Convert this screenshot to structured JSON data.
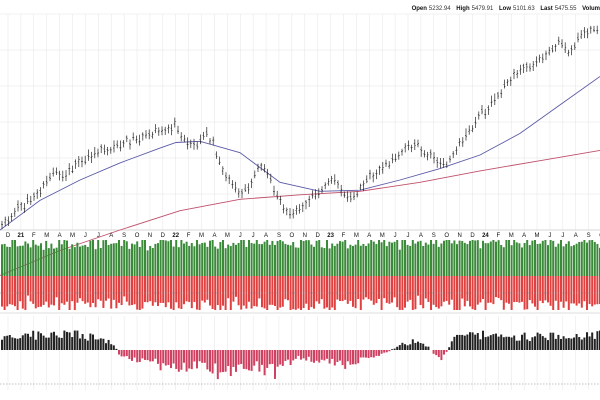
{
  "header": {
    "open_label": "Open",
    "open_value": "5232.94",
    "high_label": "High",
    "high_value": "5479.91",
    "low_label": "Low",
    "low_value": "5101.63",
    "last_label": "Last",
    "last_value": "5475.55",
    "volume_label": "Volum"
  },
  "colors": {
    "price_bar": "#222222",
    "ma_short": "#5a5aa8",
    "ma_long": "#c0506a",
    "upper_positive": "#3a8a3a",
    "upper_negative": "#e04040",
    "lower_positive": "#222222",
    "lower_negative": "#d04060",
    "grid": "#e4e4e4",
    "dotted_ref": "#888888"
  },
  "chart_data": [
    {
      "type": "line",
      "subtype": "ohlc",
      "x_range": [
        "2021-01",
        "2024-10"
      ],
      "y_range": [
        3700,
        5600
      ],
      "grid": true,
      "x_ticks": [
        "D",
        "21",
        "F",
        "M",
        "A",
        "M",
        "J",
        "J",
        "A",
        "S",
        "O",
        "N",
        "D",
        "22",
        "F",
        "M",
        "A",
        "M",
        "J",
        "J",
        "A",
        "S",
        "O",
        "N",
        "D",
        "23",
        "F",
        "M",
        "A",
        "M",
        "J",
        "J",
        "A",
        "S",
        "O",
        "N",
        "D",
        "24",
        "F",
        "M",
        "A",
        "M",
        "J",
        "J",
        "A",
        "S",
        "O"
      ],
      "x_ticks_bold": [
        "21",
        "22",
        "23",
        "24"
      ],
      "price_points": [
        [
          0,
          3720
        ],
        [
          8,
          3790
        ],
        [
          16,
          3880
        ],
        [
          24,
          3900
        ],
        [
          32,
          3980
        ],
        [
          40,
          4050
        ],
        [
          48,
          4120
        ],
        [
          56,
          4200
        ],
        [
          64,
          4180
        ],
        [
          72,
          4250
        ],
        [
          80,
          4300
        ],
        [
          88,
          4330
        ],
        [
          96,
          4380
        ],
        [
          104,
          4400
        ],
        [
          112,
          4420
        ],
        [
          120,
          4450
        ],
        [
          128,
          4480
        ],
        [
          136,
          4500
        ],
        [
          144,
          4530
        ],
        [
          152,
          4560
        ],
        [
          160,
          4580
        ],
        [
          168,
          4600
        ],
        [
          176,
          4620
        ],
        [
          184,
          4490
        ],
        [
          192,
          4420
        ],
        [
          200,
          4470
        ],
        [
          208,
          4540
        ],
        [
          216,
          4400
        ],
        [
          224,
          4200
        ],
        [
          232,
          4100
        ],
        [
          240,
          4000
        ],
        [
          248,
          4080
        ],
        [
          256,
          4200
        ],
        [
          264,
          4250
        ],
        [
          272,
          4100
        ],
        [
          280,
          3950
        ],
        [
          288,
          3820
        ],
        [
          296,
          3870
        ],
        [
          304,
          3900
        ],
        [
          312,
          4000
        ],
        [
          320,
          4050
        ],
        [
          328,
          4100
        ],
        [
          336,
          4150
        ],
        [
          344,
          4000
        ],
        [
          352,
          3950
        ],
        [
          360,
          4080
        ],
        [
          368,
          4150
        ],
        [
          376,
          4200
        ],
        [
          384,
          4260
        ],
        [
          392,
          4300
        ],
        [
          400,
          4350
        ],
        [
          408,
          4420
        ],
        [
          416,
          4450
        ],
        [
          424,
          4380
        ],
        [
          432,
          4350
        ],
        [
          440,
          4300
        ],
        [
          448,
          4280
        ],
        [
          456,
          4420
        ],
        [
          464,
          4500
        ],
        [
          472,
          4600
        ],
        [
          480,
          4700
        ],
        [
          488,
          4780
        ],
        [
          496,
          4850
        ],
        [
          504,
          4950
        ],
        [
          512,
          5050
        ],
        [
          520,
          5100
        ],
        [
          528,
          5120
        ],
        [
          536,
          5180
        ],
        [
          544,
          5230
        ],
        [
          552,
          5300
        ],
        [
          560,
          5340
        ],
        [
          568,
          5250
        ],
        [
          576,
          5350
        ],
        [
          584,
          5420
        ],
        [
          592,
          5450
        ],
        [
          600,
          5480
        ]
      ],
      "ma_short_points": [
        [
          0,
          3700
        ],
        [
          40,
          3960
        ],
        [
          80,
          4140
        ],
        [
          120,
          4290
        ],
        [
          160,
          4420
        ],
        [
          176,
          4470
        ],
        [
          200,
          4480
        ],
        [
          240,
          4380
        ],
        [
          280,
          4120
        ],
        [
          320,
          4040
        ],
        [
          360,
          4050
        ],
        [
          400,
          4140
        ],
        [
          440,
          4240
        ],
        [
          480,
          4360
        ],
        [
          520,
          4550
        ],
        [
          560,
          4800
        ],
        [
          600,
          5050
        ]
      ],
      "ma_long_points": [
        [
          0,
          3300
        ],
        [
          60,
          3520
        ],
        [
          120,
          3700
        ],
        [
          180,
          3870
        ],
        [
          240,
          3970
        ],
        [
          300,
          4010
        ],
        [
          360,
          4040
        ],
        [
          420,
          4120
        ],
        [
          480,
          4220
        ],
        [
          540,
          4310
        ],
        [
          600,
          4400
        ]
      ],
      "series": [
        {
          "name": "",
          "color_key": "price_bar"
        },
        {
          "name": "",
          "color_key": "ma_short"
        },
        {
          "name": "",
          "color_key": "ma_long"
        }
      ]
    },
    {
      "type": "bar",
      "subtype": "breadth_upper",
      "y_range": [
        -1,
        1
      ],
      "dotted_ref_value": -0.5,
      "seed_up": [
        0.38,
        0.42,
        0.45,
        0.36,
        0.4,
        0.46,
        0.33,
        0.44,
        0.41,
        0.37
      ],
      "seed_down": [
        0.32,
        0.36,
        0.42,
        0.38,
        0.46,
        0.4,
        0.5,
        0.35,
        0.44,
        0.39
      ]
    },
    {
      "type": "bar",
      "subtype": "breadth_lower",
      "y_range": [
        -1,
        1
      ],
      "dotted_ref_value": -0.85,
      "profile": [
        [
          0,
          0.35
        ],
        [
          30,
          0.5
        ],
        [
          60,
          0.6
        ],
        [
          90,
          0.45
        ],
        [
          110,
          0.3
        ],
        [
          120,
          -0.2
        ],
        [
          150,
          -0.35
        ],
        [
          170,
          -0.55
        ],
        [
          200,
          -0.4
        ],
        [
          225,
          -0.75
        ],
        [
          250,
          -0.45
        ],
        [
          275,
          -0.65
        ],
        [
          295,
          -0.25
        ],
        [
          320,
          -0.3
        ],
        [
          345,
          -0.5
        ],
        [
          360,
          -0.25
        ],
        [
          385,
          -0.1
        ],
        [
          400,
          0.2
        ],
        [
          420,
          0.35
        ],
        [
          440,
          -0.35
        ],
        [
          455,
          0.45
        ],
        [
          480,
          0.55
        ],
        [
          510,
          0.4
        ],
        [
          540,
          0.5
        ],
        [
          570,
          0.45
        ],
        [
          600,
          0.55
        ]
      ]
    }
  ]
}
